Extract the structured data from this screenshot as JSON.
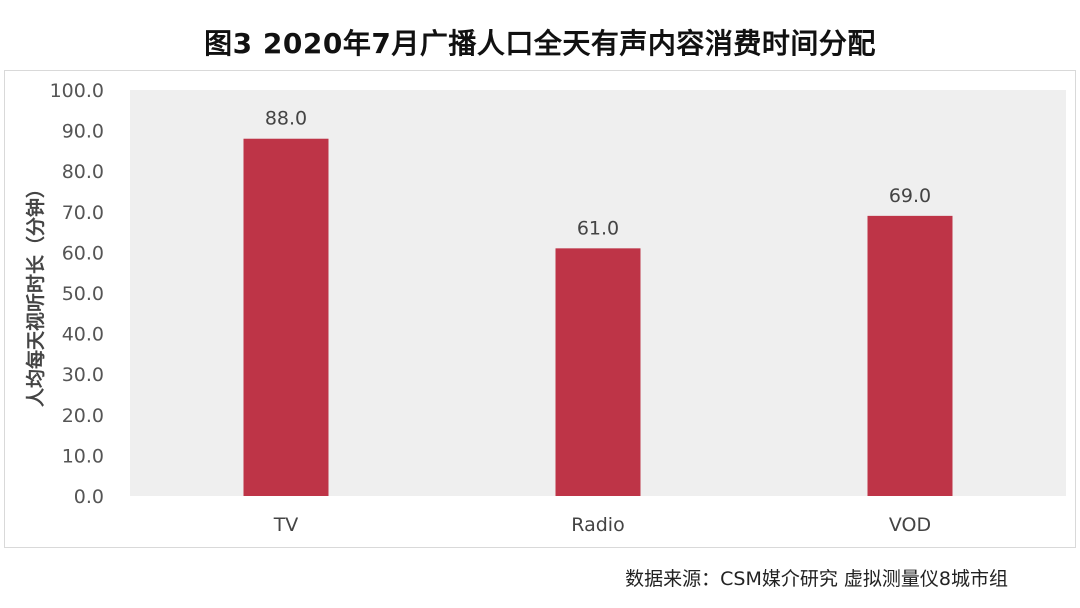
{
  "title": "图3 2020年7月广播人口全天有声内容消费时间分配",
  "source": "数据来源：CSM媒介研究 虚拟测量仪8城市组",
  "chart_data": {
    "type": "bar",
    "categories": [
      "TV",
      "Radio",
      "VOD"
    ],
    "values": [
      88.0,
      61.0,
      69.0
    ],
    "data_labels": [
      "88.0",
      "61.0",
      "69.0"
    ],
    "title": "图3 2020年7月广播人口全天有声内容消费时间分配",
    "xlabel": "",
    "ylabel": "人均每天视听时长（分钟）",
    "ylim": [
      0,
      100
    ],
    "yticks": [
      "0.0",
      "10.0",
      "20.0",
      "30.0",
      "40.0",
      "50.0",
      "60.0",
      "70.0",
      "80.0",
      "90.0",
      "100.0"
    ],
    "grid": false,
    "bar_color": "#BE3447",
    "plot_background": "#EFEFEF"
  }
}
